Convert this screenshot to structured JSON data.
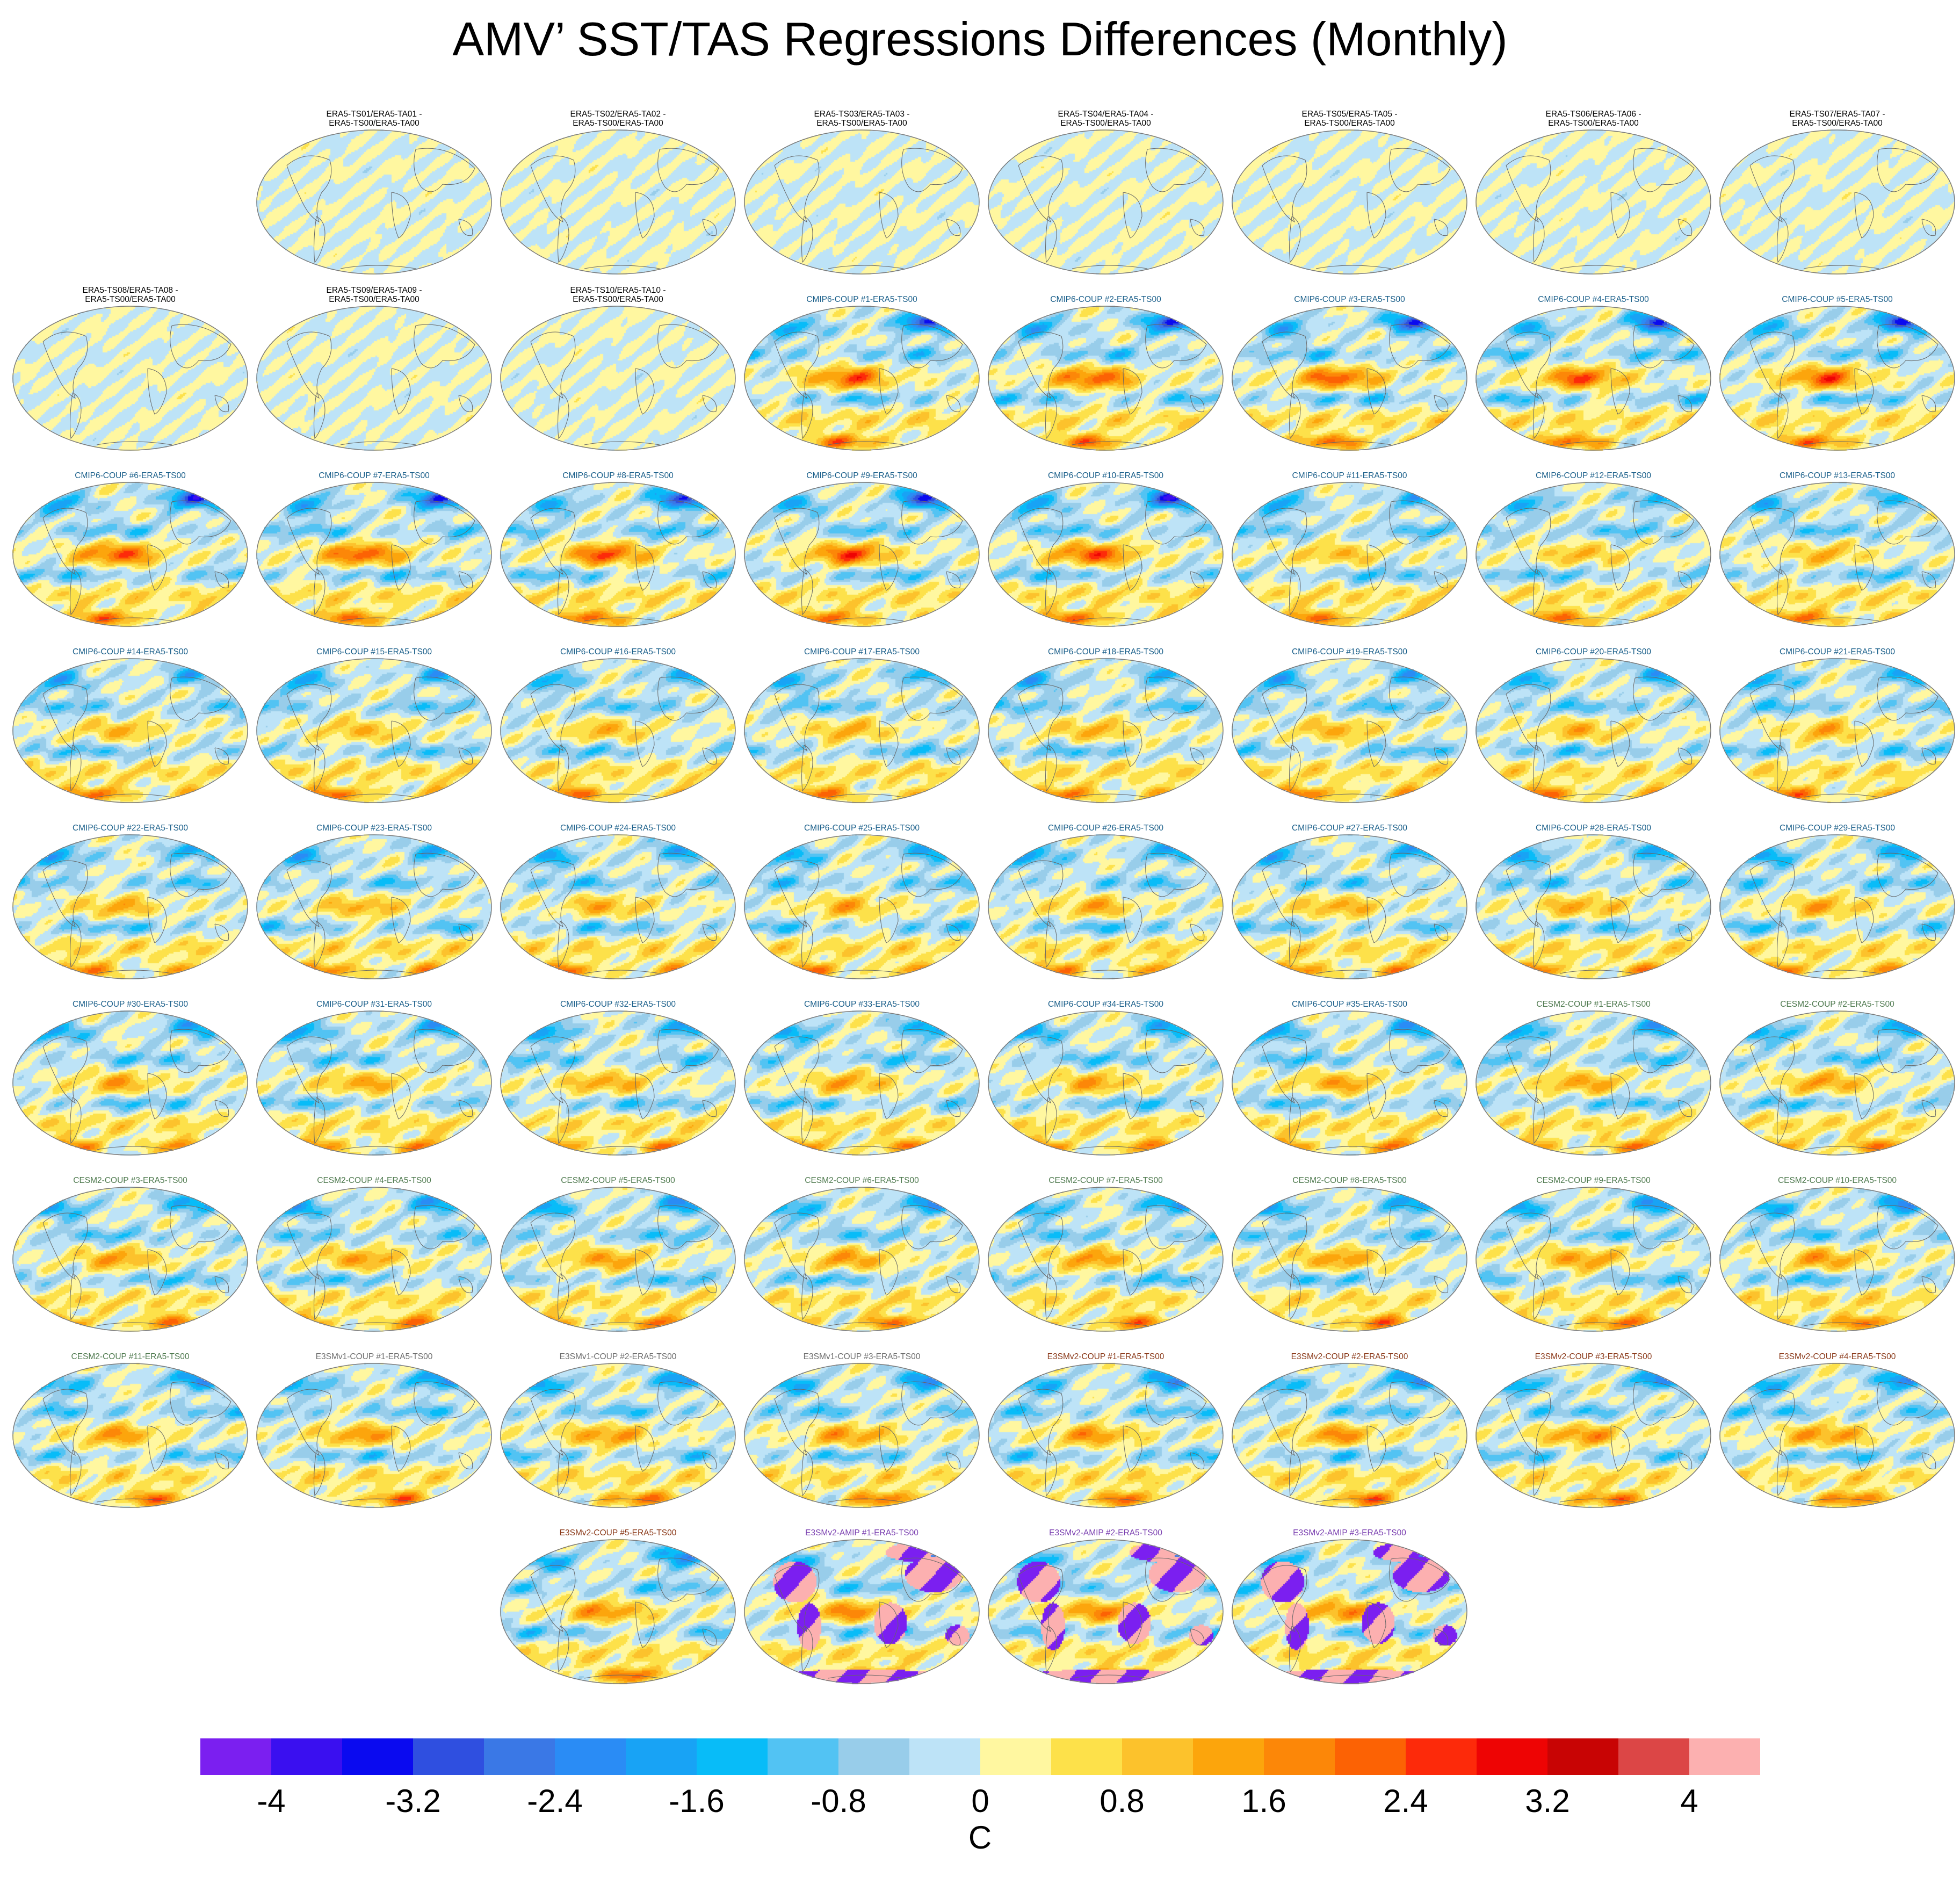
{
  "title": "AMV’ SST/TAS Regressions Differences (Monthly)",
  "group_colors": {
    "ERA5": "#000000",
    "CMIP6": "#1a5f8a",
    "CESM2": "#4f7a4f",
    "E3SMv1": "#6e6e6e",
    "E3SMv2-COUP": "#8b3a1a",
    "E3SMv2-AMIP": "#7a3fb0"
  },
  "panels": [
    {
      "title": "ERA5-TS01/ERA5-TA01 - ERA5-TS00/ERA5-TA00",
      "group": "ERA5",
      "style": "near-zero",
      "line1": "ERA5-TS01/ERA5-TA01 -",
      "line2": "ERA5-TS00/ERA5-TA00"
    },
    {
      "title": "ERA5-TS02/ERA5-TA02 - ERA5-TS00/ERA5-TA00",
      "group": "ERA5",
      "style": "near-zero",
      "line1": "ERA5-TS02/ERA5-TA02 -",
      "line2": "ERA5-TS00/ERA5-TA00"
    },
    {
      "title": "ERA5-TS03/ERA5-TA03 - ERA5-TS00/ERA5-TA00",
      "group": "ERA5",
      "style": "near-zero",
      "line1": "ERA5-TS03/ERA5-TA03 -",
      "line2": "ERA5-TS00/ERA5-TA00"
    },
    {
      "title": "ERA5-TS04/ERA5-TA04 - ERA5-TS00/ERA5-TA00",
      "group": "ERA5",
      "style": "near-zero",
      "line1": "ERA5-TS04/ERA5-TA04 -",
      "line2": "ERA5-TS00/ERA5-TA00"
    },
    {
      "title": "ERA5-TS05/ERA5-TA05 - ERA5-TS00/ERA5-TA00",
      "group": "ERA5",
      "style": "near-zero",
      "line1": "ERA5-TS05/ERA5-TA05 -",
      "line2": "ERA5-TS00/ERA5-TA00"
    },
    {
      "title": "ERA5-TS06/ERA5-TA06 - ERA5-TS00/ERA5-TA00",
      "group": "ERA5",
      "style": "near-zero",
      "line1": "ERA5-TS06/ERA5-TA06 -",
      "line2": "ERA5-TS00/ERA5-TA00"
    },
    {
      "title": "ERA5-TS07/ERA5-TA07 - ERA5-TS00/ERA5-TA00",
      "group": "ERA5",
      "style": "near-zero",
      "line1": "ERA5-TS07/ERA5-TA07 -",
      "line2": "ERA5-TS00/ERA5-TA00"
    },
    {
      "title": "ERA5-TS08/ERA5-TA08 - ERA5-TS00/ERA5-TA00",
      "group": "ERA5",
      "style": "near-zero",
      "line1": "ERA5-TS08/ERA5-TA08 -",
      "line2": "ERA5-TS00/ERA5-TA00"
    },
    {
      "title": "ERA5-TS09/ERA5-TA09 - ERA5-TS00/ERA5-TA00",
      "group": "ERA5",
      "style": "near-zero",
      "line1": "ERA5-TS09/ERA5-TA09 -",
      "line2": "ERA5-TS00/ERA5-TA00"
    },
    {
      "title": "ERA5-TS10/ERA5-TA10 - ERA5-TS00/ERA5-TA00",
      "group": "ERA5",
      "style": "near-zero",
      "line1": "ERA5-TS10/ERA5-TA10 -",
      "line2": "ERA5-TS00/ERA5-TA00"
    },
    {
      "title": "CMIP6-COUP  #1-ERA5-TS00",
      "group": "CMIP6",
      "style": "model"
    },
    {
      "title": "CMIP6-COUP  #2-ERA5-TS00",
      "group": "CMIP6",
      "style": "model"
    },
    {
      "title": "CMIP6-COUP  #3-ERA5-TS00",
      "group": "CMIP6",
      "style": "model"
    },
    {
      "title": "CMIP6-COUP  #4-ERA5-TS00",
      "group": "CMIP6",
      "style": "model"
    },
    {
      "title": "CMIP6-COUP  #5-ERA5-TS00",
      "group": "CMIP6",
      "style": "model"
    },
    {
      "title": "CMIP6-COUP  #6-ERA5-TS00",
      "group": "CMIP6",
      "style": "model"
    },
    {
      "title": "CMIP6-COUP  #7-ERA5-TS00",
      "group": "CMIP6",
      "style": "model"
    },
    {
      "title": "CMIP6-COUP  #8-ERA5-TS00",
      "group": "CMIP6",
      "style": "model"
    },
    {
      "title": "CMIP6-COUP  #9-ERA5-TS00",
      "group": "CMIP6",
      "style": "model"
    },
    {
      "title": "CMIP6-COUP  #10-ERA5-TS00",
      "group": "CMIP6",
      "style": "model"
    },
    {
      "title": "CMIP6-COUP  #11-ERA5-TS00",
      "group": "CMIP6",
      "style": "model"
    },
    {
      "title": "CMIP6-COUP  #12-ERA5-TS00",
      "group": "CMIP6",
      "style": "model"
    },
    {
      "title": "CMIP6-COUP  #13-ERA5-TS00",
      "group": "CMIP6",
      "style": "model"
    },
    {
      "title": "CMIP6-COUP  #14-ERA5-TS00",
      "group": "CMIP6",
      "style": "model"
    },
    {
      "title": "CMIP6-COUP  #15-ERA5-TS00",
      "group": "CMIP6",
      "style": "model"
    },
    {
      "title": "CMIP6-COUP  #16-ERA5-TS00",
      "group": "CMIP6",
      "style": "model"
    },
    {
      "title": "CMIP6-COUP  #17-ERA5-TS00",
      "group": "CMIP6",
      "style": "model"
    },
    {
      "title": "CMIP6-COUP  #18-ERA5-TS00",
      "group": "CMIP6",
      "style": "model"
    },
    {
      "title": "CMIP6-COUP  #19-ERA5-TS00",
      "group": "CMIP6",
      "style": "model"
    },
    {
      "title": "CMIP6-COUP  #20-ERA5-TS00",
      "group": "CMIP6",
      "style": "model"
    },
    {
      "title": "CMIP6-COUP  #21-ERA5-TS00",
      "group": "CMIP6",
      "style": "model"
    },
    {
      "title": "CMIP6-COUP  #22-ERA5-TS00",
      "group": "CMIP6",
      "style": "model"
    },
    {
      "title": "CMIP6-COUP  #23-ERA5-TS00",
      "group": "CMIP6",
      "style": "model"
    },
    {
      "title": "CMIP6-COUP  #24-ERA5-TS00",
      "group": "CMIP6",
      "style": "model"
    },
    {
      "title": "CMIP6-COUP  #25-ERA5-TS00",
      "group": "CMIP6",
      "style": "model"
    },
    {
      "title": "CMIP6-COUP  #26-ERA5-TS00",
      "group": "CMIP6",
      "style": "model"
    },
    {
      "title": "CMIP6-COUP  #27-ERA5-TS00",
      "group": "CMIP6",
      "style": "model"
    },
    {
      "title": "CMIP6-COUP  #28-ERA5-TS00",
      "group": "CMIP6",
      "style": "model"
    },
    {
      "title": "CMIP6-COUP  #29-ERA5-TS00",
      "group": "CMIP6",
      "style": "model"
    },
    {
      "title": "CMIP6-COUP  #30-ERA5-TS00",
      "group": "CMIP6",
      "style": "model"
    },
    {
      "title": "CMIP6-COUP  #31-ERA5-TS00",
      "group": "CMIP6",
      "style": "model"
    },
    {
      "title": "CMIP6-COUP  #32-ERA5-TS00",
      "group": "CMIP6",
      "style": "model"
    },
    {
      "title": "CMIP6-COUP  #33-ERA5-TS00",
      "group": "CMIP6",
      "style": "model"
    },
    {
      "title": "CMIP6-COUP  #34-ERA5-TS00",
      "group": "CMIP6",
      "style": "model"
    },
    {
      "title": "CMIP6-COUP  #35-ERA5-TS00",
      "group": "CMIP6",
      "style": "model"
    },
    {
      "title": "CESM2-COUP  #1-ERA5-TS00",
      "group": "CESM2",
      "style": "model"
    },
    {
      "title": "CESM2-COUP  #2-ERA5-TS00",
      "group": "CESM2",
      "style": "model"
    },
    {
      "title": "CESM2-COUP  #3-ERA5-TS00",
      "group": "CESM2",
      "style": "model"
    },
    {
      "title": "CESM2-COUP  #4-ERA5-TS00",
      "group": "CESM2",
      "style": "model"
    },
    {
      "title": "CESM2-COUP  #5-ERA5-TS00",
      "group": "CESM2",
      "style": "model"
    },
    {
      "title": "CESM2-COUP  #6-ERA5-TS00",
      "group": "CESM2",
      "style": "model"
    },
    {
      "title": "CESM2-COUP  #7-ERA5-TS00",
      "group": "CESM2",
      "style": "model"
    },
    {
      "title": "CESM2-COUP  #8-ERA5-TS00",
      "group": "CESM2",
      "style": "model"
    },
    {
      "title": "CESM2-COUP  #9-ERA5-TS00",
      "group": "CESM2",
      "style": "model"
    },
    {
      "title": "CESM2-COUP  #10-ERA5-TS00",
      "group": "CESM2",
      "style": "model"
    },
    {
      "title": "CESM2-COUP  #11-ERA5-TS00",
      "group": "CESM2",
      "style": "model"
    },
    {
      "title": "E3SMv1-COUP #1-ERA5-TS00",
      "group": "E3SMv1",
      "style": "model"
    },
    {
      "title": "E3SMv1-COUP #2-ERA5-TS00",
      "group": "E3SMv1",
      "style": "model"
    },
    {
      "title": "E3SMv1-COUP #3-ERA5-TS00",
      "group": "E3SMv1",
      "style": "model"
    },
    {
      "title": "E3SMv2-COUP #1-ERA5-TS00",
      "group": "E3SMv2-COUP",
      "style": "model"
    },
    {
      "title": "E3SMv2-COUP #2-ERA5-TS00",
      "group": "E3SMv2-COUP",
      "style": "model"
    },
    {
      "title": "E3SMv2-COUP #3-ERA5-TS00",
      "group": "E3SMv2-COUP",
      "style": "model"
    },
    {
      "title": "E3SMv2-COUP #4-ERA5-TS00",
      "group": "E3SMv2-COUP",
      "style": "model"
    },
    {
      "title": "E3SMv2-COUP #5-ERA5-TS00",
      "group": "E3SMv2-COUP",
      "style": "model"
    },
    {
      "title": "E3SMv2-AMIP #1-ERA5-TS00",
      "group": "E3SMv2-AMIP",
      "style": "amip"
    },
    {
      "title": "E3SMv2-AMIP #2-ERA5-TS00",
      "group": "E3SMv2-AMIP",
      "style": "amip"
    },
    {
      "title": "E3SMv2-AMIP #3-ERA5-TS00",
      "group": "E3SMv2-AMIP",
      "style": "amip"
    }
  ],
  "colorbar": {
    "colors": [
      "#7b1ff0",
      "#3a0ff0",
      "#0a0af0",
      "#2f4fe0",
      "#3a78e6",
      "#2a8cf5",
      "#18a3f5",
      "#08bcf8",
      "#52c3f3",
      "#98cdea",
      "#bde3f7",
      "#fff7a0",
      "#fde14a",
      "#fcc22c",
      "#fca50c",
      "#fc8708",
      "#fc6204",
      "#fd2a0a",
      "#ee0404",
      "#c80404",
      "#dc4646",
      "#fcb0b0"
    ],
    "min": -4.4,
    "max": 4.4,
    "step": 0.4,
    "tick_labels": [
      "-4",
      "-3.2",
      "-2.4",
      "-1.6",
      "-0.8",
      "0",
      "0.8",
      "1.6",
      "2.4",
      "3.2",
      "4"
    ],
    "tick_values": [
      -4,
      -3.2,
      -2.4,
      -1.6,
      -0.8,
      0,
      0.8,
      1.6,
      2.4,
      3.2,
      4
    ],
    "unit": "C"
  }
}
